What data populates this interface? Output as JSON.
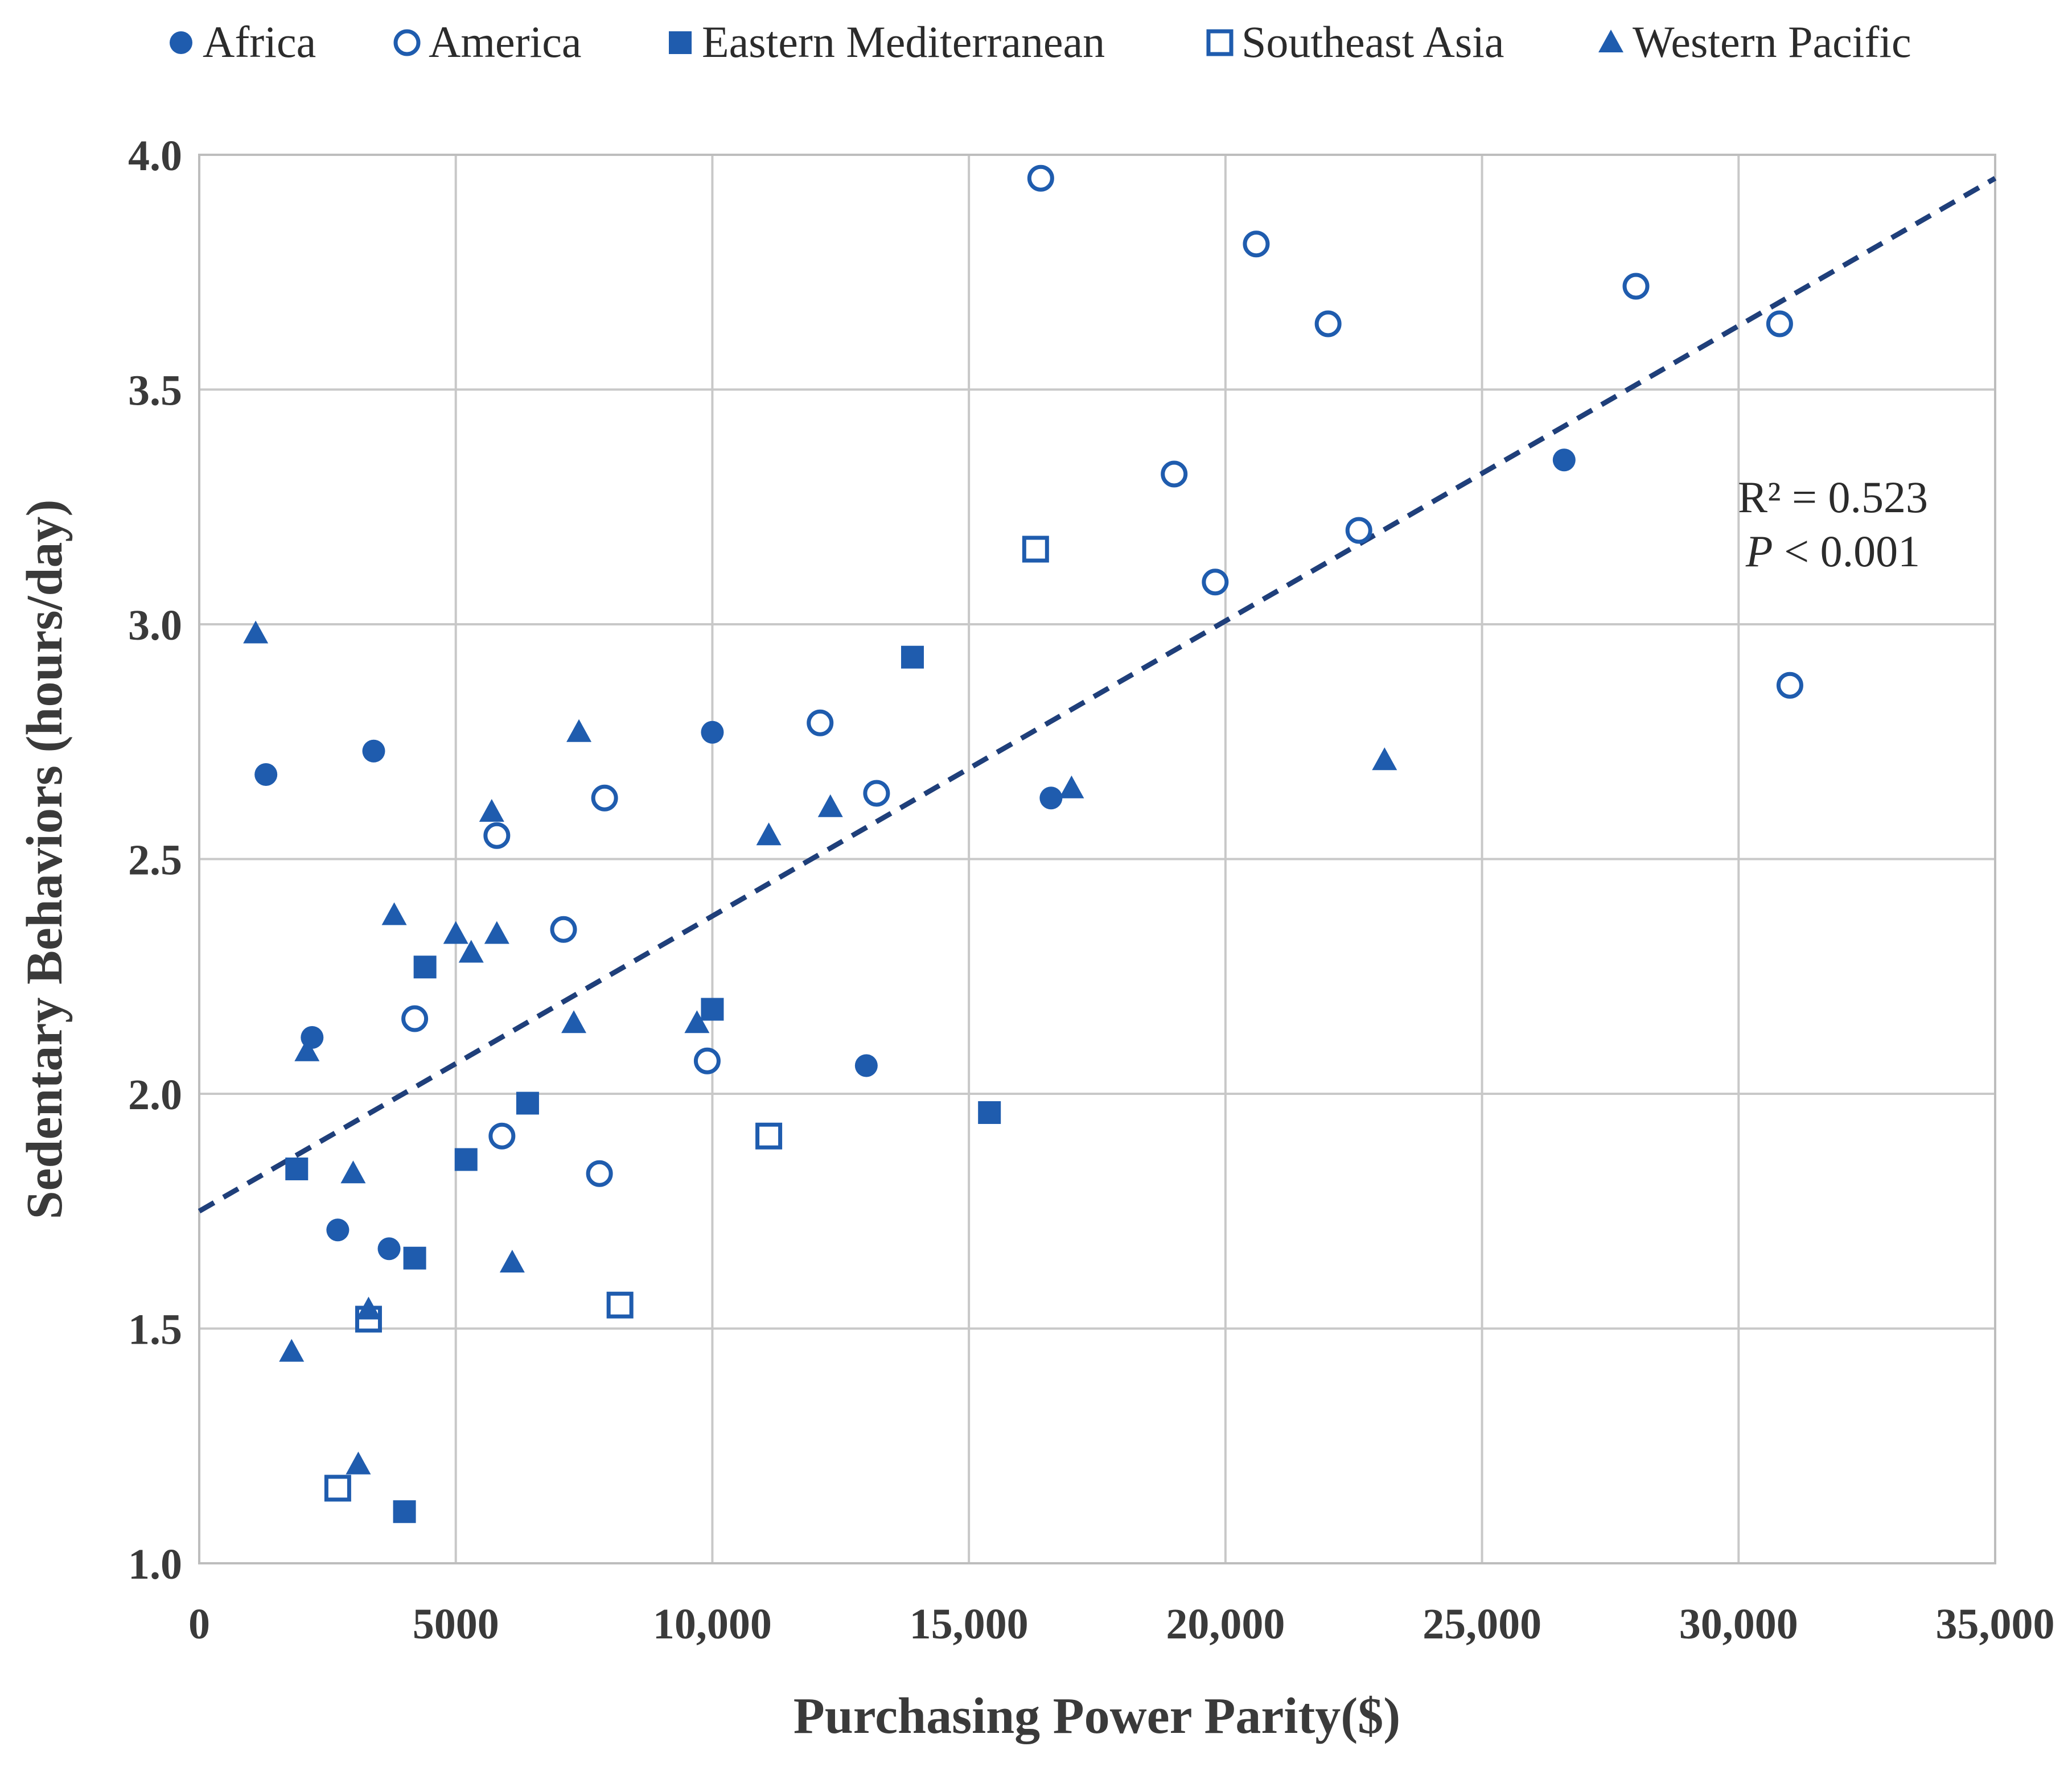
{
  "colors": {
    "marker": "#1f5cae",
    "trend": "#1f3f7a"
  },
  "chart_data": {
    "type": "scatter",
    "title": "",
    "xlabel": "Purchasing Power Parity($)",
    "ylabel": "Sedentary Behaviors (hours/day)",
    "xlim": [
      0,
      35000
    ],
    "ylim": [
      1.0,
      4.0
    ],
    "x_ticks": [
      0,
      5000,
      10000,
      15000,
      20000,
      25000,
      30000,
      35000
    ],
    "x_tick_labels": [
      "0",
      "5000",
      "10,000",
      "15,000",
      "20,000",
      "25,000",
      "30,000",
      "35,000"
    ],
    "y_ticks": [
      1.0,
      1.5,
      2.0,
      2.5,
      3.0,
      3.5,
      4.0
    ],
    "y_tick_labels": [
      "1.0",
      "1.5",
      "2.0",
      "2.5",
      "3.0",
      "3.5",
      "4.0"
    ],
    "grid": true,
    "legend_position": "top",
    "annotation": {
      "r2": "R² = 0.523",
      "p_italic": "P",
      "p_rest": " < 0.001"
    },
    "trendline": {
      "x": [
        0,
        35000
      ],
      "y": [
        1.75,
        3.95
      ],
      "style": "dashed"
    },
    "series": [
      {
        "name": "Africa",
        "marker": "filled-circle",
        "points": [
          [
            1300,
            2.68
          ],
          [
            3400,
            2.73
          ],
          [
            2200,
            2.12
          ],
          [
            2700,
            1.71
          ],
          [
            3700,
            1.67
          ],
          [
            10000,
            2.77
          ],
          [
            13000,
            2.06
          ],
          [
            16600,
            2.63
          ],
          [
            26600,
            3.35
          ]
        ]
      },
      {
        "name": "America",
        "marker": "open-circle",
        "points": [
          [
            16400,
            3.95
          ],
          [
            20600,
            3.81
          ],
          [
            28000,
            3.72
          ],
          [
            22000,
            3.64
          ],
          [
            30800,
            3.64
          ],
          [
            19000,
            3.32
          ],
          [
            22600,
            3.2
          ],
          [
            19800,
            3.09
          ],
          [
            31000,
            2.87
          ],
          [
            12100,
            2.79
          ],
          [
            13200,
            2.64
          ],
          [
            7900,
            2.63
          ],
          [
            5800,
            2.55
          ],
          [
            7100,
            2.35
          ],
          [
            4200,
            2.16
          ],
          [
            9900,
            2.07
          ],
          [
            5900,
            1.91
          ],
          [
            7800,
            1.83
          ]
        ]
      },
      {
        "name": "Eastern Mediterranean",
        "marker": "filled-square",
        "points": [
          [
            13900,
            2.93
          ],
          [
            4400,
            2.27
          ],
          [
            10000,
            2.18
          ],
          [
            6400,
            1.98
          ],
          [
            15400,
            1.96
          ],
          [
            5200,
            1.86
          ],
          [
            1900,
            1.84
          ],
          [
            4200,
            1.65
          ],
          [
            4000,
            1.11
          ]
        ]
      },
      {
        "name": "Southeast Asia",
        "marker": "open-square",
        "points": [
          [
            16300,
            3.16
          ],
          [
            11100,
            1.91
          ],
          [
            8200,
            1.55
          ],
          [
            3300,
            1.52
          ],
          [
            2700,
            1.16
          ]
        ]
      },
      {
        "name": "Western Pacific",
        "marker": "filled-triangle",
        "points": [
          [
            1100,
            2.98
          ],
          [
            7400,
            2.77
          ],
          [
            23100,
            2.71
          ],
          [
            17000,
            2.65
          ],
          [
            12300,
            2.61
          ],
          [
            5700,
            2.6
          ],
          [
            11100,
            2.55
          ],
          [
            3800,
            2.38
          ],
          [
            5000,
            2.34
          ],
          [
            5800,
            2.34
          ],
          [
            5300,
            2.3
          ],
          [
            7300,
            2.15
          ],
          [
            9700,
            2.15
          ],
          [
            2100,
            2.09
          ],
          [
            3000,
            1.83
          ],
          [
            6100,
            1.64
          ],
          [
            3300,
            1.54
          ],
          [
            1800,
            1.45
          ],
          [
            3100,
            1.21
          ]
        ]
      }
    ]
  }
}
